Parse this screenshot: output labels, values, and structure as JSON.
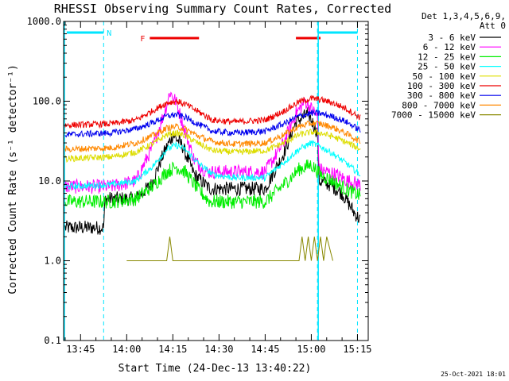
{
  "chart_data": {
    "type": "line",
    "title": "RHESSI Observing Summary Count Rates, Corrected",
    "xlabel": "Start Time (24-Dec-13 13:40:22)",
    "ylabel": "Corrected Count Rate (s⁻¹ detector⁻¹)",
    "y_scale": "log",
    "ylim": [
      0.1,
      1000.0
    ],
    "y_ticks": [
      "1000.0",
      "100.0",
      "10.0",
      "1.0",
      "0.1"
    ],
    "x_ticks": [
      "13:45",
      "14:00",
      "14:15",
      "14:30",
      "14:45",
      "15:00",
      "15:15"
    ],
    "x_tick_minutes": [
      -20,
      -5,
      10,
      25,
      40,
      55,
      70
    ],
    "xlim_minutes": [
      -25.5,
      73.5
    ],
    "detector_info": [
      "Det 1,3,4,5,6,9,",
      "Att 0"
    ],
    "legend_position": "top-right outside",
    "flags": {
      "night_label": "N",
      "flare_label": "F",
      "night_color": "#00e5ff",
      "flare_color": "#ee0000",
      "night_intervals": [
        [
          -24.5,
          -12.5
        ],
        [
          57,
          70
        ]
      ],
      "flare_intervals": [
        [
          2.5,
          18.5
        ],
        [
          50,
          58
        ]
      ],
      "dashed_markers": [
        -12.5,
        57,
        70
      ]
    },
    "series": [
      {
        "name": "3 - 6 keV",
        "color": "#000000",
        "values": [
          [
            -25,
            2.6
          ],
          [
            -16,
            2.6
          ],
          [
            -12.5,
            2.6
          ],
          [
            -12,
            6
          ],
          [
            -2,
            6
          ],
          [
            3,
            9
          ],
          [
            7,
            22
          ],
          [
            10,
            38
          ],
          [
            13,
            28
          ],
          [
            17,
            12
          ],
          [
            22,
            8
          ],
          [
            40,
            8
          ],
          [
            46,
            22
          ],
          [
            50,
            55
          ],
          [
            54,
            70
          ],
          [
            57,
            40
          ],
          [
            57.5,
            10
          ],
          [
            61,
            9
          ],
          [
            65,
            7
          ],
          [
            69,
            4
          ],
          [
            71,
            3.2
          ]
        ]
      },
      {
        "name": "6 - 12 keV",
        "color": "#ff00ff",
        "values": [
          [
            -25,
            8.5
          ],
          [
            -10,
            8.5
          ],
          [
            -2,
            10
          ],
          [
            4,
            30
          ],
          [
            8,
            90
          ],
          [
            9,
            130
          ],
          [
            11,
            100
          ],
          [
            13,
            55
          ],
          [
            17,
            18
          ],
          [
            21,
            13
          ],
          [
            40,
            13
          ],
          [
            46,
            30
          ],
          [
            50,
            70
          ],
          [
            53,
            100
          ],
          [
            57,
            65
          ],
          [
            57.5,
            14
          ],
          [
            63,
            12
          ],
          [
            67,
            10
          ],
          [
            71,
            9
          ]
        ]
      },
      {
        "name": "12 - 25 keV",
        "color": "#00ee00",
        "values": [
          [
            -25,
            5.5
          ],
          [
            -10,
            5.5
          ],
          [
            -2,
            6
          ],
          [
            4,
            9
          ],
          [
            8,
            13
          ],
          [
            11,
            15
          ],
          [
            14,
            13
          ],
          [
            18,
            8
          ],
          [
            22,
            5.5
          ],
          [
            40,
            5.5
          ],
          [
            46,
            9
          ],
          [
            51,
            14
          ],
          [
            55,
            16
          ],
          [
            58,
            12
          ],
          [
            62,
            10
          ],
          [
            66,
            8
          ],
          [
            71,
            6.5
          ]
        ]
      },
      {
        "name": "25 - 50 keV",
        "color": "#00ffff",
        "values": [
          [
            -25,
            8.5
          ],
          [
            -10,
            9
          ],
          [
            -2,
            10
          ],
          [
            4,
            16
          ],
          [
            8,
            25
          ],
          [
            11,
            28
          ],
          [
            14,
            25
          ],
          [
            18,
            17
          ],
          [
            23,
            12
          ],
          [
            30,
            11
          ],
          [
            40,
            11
          ],
          [
            46,
            17
          ],
          [
            51,
            25
          ],
          [
            55,
            30
          ],
          [
            58,
            27
          ],
          [
            62,
            22
          ],
          [
            66,
            17
          ],
          [
            71,
            12
          ]
        ]
      },
      {
        "name": "50 - 100 keV",
        "color": "#dddd00",
        "values": [
          [
            -25,
            19
          ],
          [
            -10,
            20
          ],
          [
            -2,
            23
          ],
          [
            4,
            30
          ],
          [
            8,
            38
          ],
          [
            11,
            40
          ],
          [
            14,
            37
          ],
          [
            18,
            30
          ],
          [
            23,
            24
          ],
          [
            30,
            23
          ],
          [
            40,
            24
          ],
          [
            46,
            30
          ],
          [
            51,
            38
          ],
          [
            55,
            41
          ],
          [
            58,
            40
          ],
          [
            62,
            36
          ],
          [
            66,
            31
          ],
          [
            71,
            25
          ]
        ]
      },
      {
        "name": "100 - 300 keV",
        "color": "#ee0000",
        "values": [
          [
            -25,
            50
          ],
          [
            -10,
            52
          ],
          [
            -2,
            58
          ],
          [
            4,
            78
          ],
          [
            8,
            95
          ],
          [
            11,
            100
          ],
          [
            14,
            92
          ],
          [
            18,
            75
          ],
          [
            23,
            58
          ],
          [
            30,
            55
          ],
          [
            40,
            58
          ],
          [
            46,
            75
          ],
          [
            51,
            98
          ],
          [
            55,
            108
          ],
          [
            58,
            105
          ],
          [
            62,
            95
          ],
          [
            66,
            82
          ],
          [
            71,
            62
          ]
        ]
      },
      {
        "name": "300 - 800 keV",
        "color": "#0000ee",
        "values": [
          [
            -25,
            38
          ],
          [
            -10,
            40
          ],
          [
            -2,
            45
          ],
          [
            4,
            55
          ],
          [
            8,
            65
          ],
          [
            11,
            68
          ],
          [
            14,
            63
          ],
          [
            18,
            52
          ],
          [
            23,
            42
          ],
          [
            30,
            40
          ],
          [
            40,
            42
          ],
          [
            46,
            52
          ],
          [
            51,
            65
          ],
          [
            55,
            71
          ],
          [
            58,
            70
          ],
          [
            62,
            64
          ],
          [
            66,
            56
          ],
          [
            71,
            43
          ]
        ]
      },
      {
        "name": "800 - 7000 keV",
        "color": "#ff8800",
        "values": [
          [
            -25,
            25
          ],
          [
            -10,
            26
          ],
          [
            -2,
            30
          ],
          [
            4,
            38
          ],
          [
            8,
            46
          ],
          [
            11,
            48
          ],
          [
            14,
            45
          ],
          [
            18,
            37
          ],
          [
            23,
            31
          ],
          [
            30,
            29
          ],
          [
            40,
            30
          ],
          [
            46,
            38
          ],
          [
            51,
            48
          ],
          [
            55,
            53
          ],
          [
            58,
            52
          ],
          [
            62,
            47
          ],
          [
            66,
            40
          ],
          [
            71,
            31
          ]
        ]
      },
      {
        "name": "7000 - 15000 keV",
        "color": "#888800",
        "values": [
          [
            -5,
            1.0
          ],
          [
            8,
            1.0
          ],
          [
            9,
            2.0
          ],
          [
            10,
            1.0
          ],
          [
            12,
            1.0
          ],
          [
            47,
            1.0
          ],
          [
            51,
            1.0
          ],
          [
            52,
            2.0
          ],
          [
            53,
            1.0
          ],
          [
            54,
            2.0
          ],
          [
            55,
            1.0
          ],
          [
            56,
            2.0
          ],
          [
            57,
            1.0
          ],
          [
            58,
            2.0
          ],
          [
            59,
            1.0
          ],
          [
            60,
            2.0
          ],
          [
            62,
            1.0
          ]
        ]
      }
    ]
  },
  "footer": {
    "timestamp": "25-Oct-2021 18:01"
  }
}
